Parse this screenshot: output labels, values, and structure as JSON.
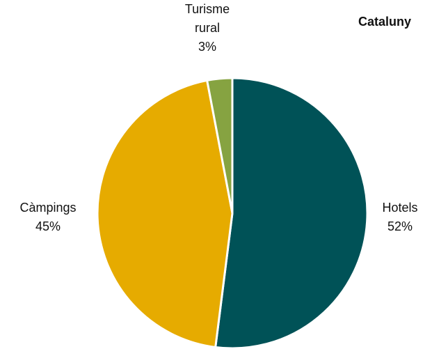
{
  "chart_data": {
    "type": "pie",
    "title": "Cataluny",
    "categories": [
      "Hotels",
      "Càmpings",
      "Turisme rural"
    ],
    "values": [
      52,
      45,
      3
    ],
    "labels": [
      {
        "lines": [
          "Hotels",
          "52%"
        ]
      },
      {
        "lines": [
          "Càmpings",
          "45%"
        ]
      },
      {
        "lines": [
          "Turisme",
          "rural",
          "3%"
        ]
      }
    ],
    "colors": [
      "#005257",
      "#e6ab00",
      "#86a341"
    ]
  }
}
